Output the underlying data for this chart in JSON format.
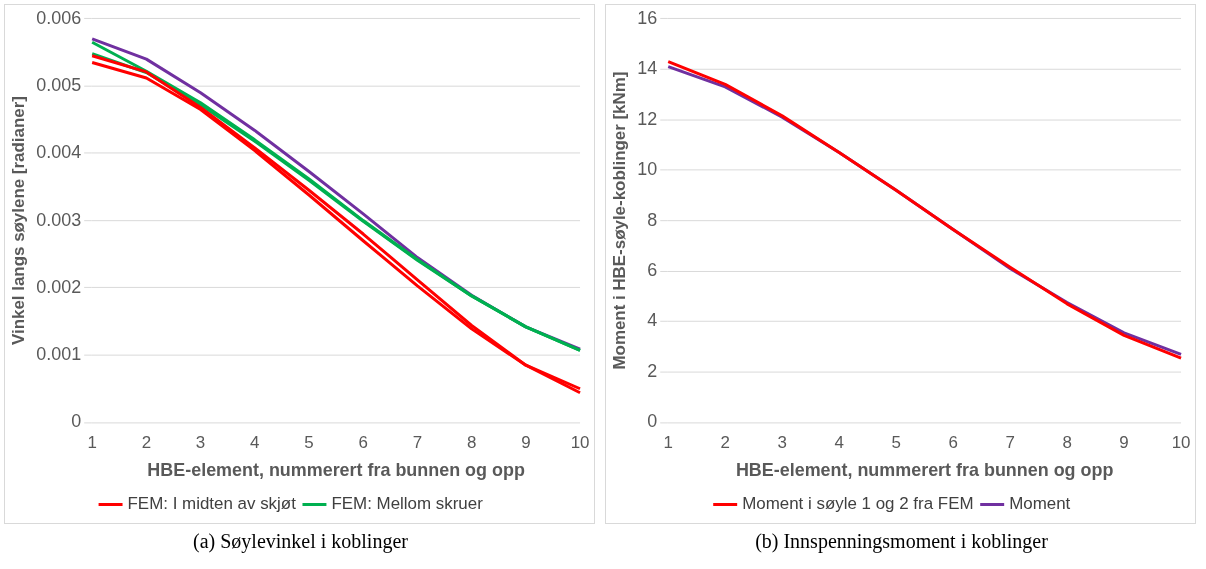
{
  "chart_data": [
    {
      "type": "line",
      "xlabel": "HBE-element, nummerert fra bunnen og opp",
      "ylabel": "Vinkel langs søylene [radianer]",
      "categories": [
        "1",
        "2",
        "3",
        "4",
        "5",
        "6",
        "7",
        "8",
        "9",
        "10"
      ],
      "ylim": [
        0,
        0.006
      ],
      "yticks": [
        {
          "value": 0,
          "label": "0"
        },
        {
          "value": 0.001,
          "label": "0.001"
        },
        {
          "value": 0.002,
          "label": "0.002"
        },
        {
          "value": 0.003,
          "label": "0.003"
        },
        {
          "value": 0.004,
          "label": "0.004"
        },
        {
          "value": 0.005,
          "label": "0.005"
        },
        {
          "value": 0.006,
          "label": "0.006"
        }
      ],
      "grid": "y",
      "legend": "bottom",
      "marker": "none",
      "line_style": "solid",
      "annotations": [
        "(a) Søylevinkel i koblinger"
      ],
      "series": [
        {
          "name": "FEM: I midten av skjøt",
          "color": "#ff0000",
          "values": [
            0.00545,
            0.00521,
            0.00468,
            0.00408,
            0.00345,
            0.0028,
            0.00212,
            0.00144,
            0.00085,
            0.0005
          ]
        },
        {
          "color": "#ff0000",
          "values": [
            0.00535,
            0.00512,
            0.00465,
            0.00404,
            0.00338,
            0.0027,
            0.00203,
            0.00139,
            0.00085,
            0.00044
          ]
        },
        {
          "name": "FEM: Mellom skruer",
          "color": "#00b050",
          "values": [
            0.00565,
            0.00522,
            0.00475,
            0.0042,
            0.00362,
            0.003,
            0.00242,
            0.00188,
            0.00142,
            0.00107
          ]
        },
        {
          "color": "#00b050",
          "values": [
            0.00548,
            0.0052,
            0.00472,
            0.00418,
            0.0036,
            0.00299,
            0.00241,
            0.00188,
            0.00142,
            0.00107
          ]
        },
        {
          "color": "#7030a0",
          "values": [
            0.0057,
            0.0054,
            0.0049,
            0.00434,
            0.00373,
            0.0031,
            0.00245,
            0.00189,
            0.00142,
            0.00109
          ]
        }
      ]
    },
    {
      "type": "line",
      "xlabel": "HBE-element, nummerert fra bunnen og opp",
      "ylabel": "Moment i HBE-søyle-koblinger [kNm]",
      "categories": [
        "1",
        "2",
        "3",
        "4",
        "5",
        "6",
        "7",
        "8",
        "9",
        "10"
      ],
      "ylim": [
        0,
        16
      ],
      "yticks": [
        0,
        2,
        4,
        6,
        8,
        10,
        12,
        14,
        16
      ],
      "grid": "y",
      "legend": "bottom",
      "marker": "none",
      "line_style": "solid",
      "annotations": [
        "(b) Innspenningsmoment i koblinger"
      ],
      "series": [
        {
          "name": "Moment i søyle 1 og 2 fra FEM",
          "color": "#ff0000",
          "values": [
            14.3,
            13.4,
            12.15,
            10.7,
            9.2,
            7.65,
            6.15,
            4.7,
            3.45,
            2.55
          ]
        },
        {
          "name": "Moment",
          "color": "#7030a0",
          "values": [
            14.1,
            13.3,
            12.1,
            10.7,
            9.2,
            7.65,
            6.1,
            4.75,
            3.55,
            2.7
          ]
        }
      ]
    }
  ]
}
